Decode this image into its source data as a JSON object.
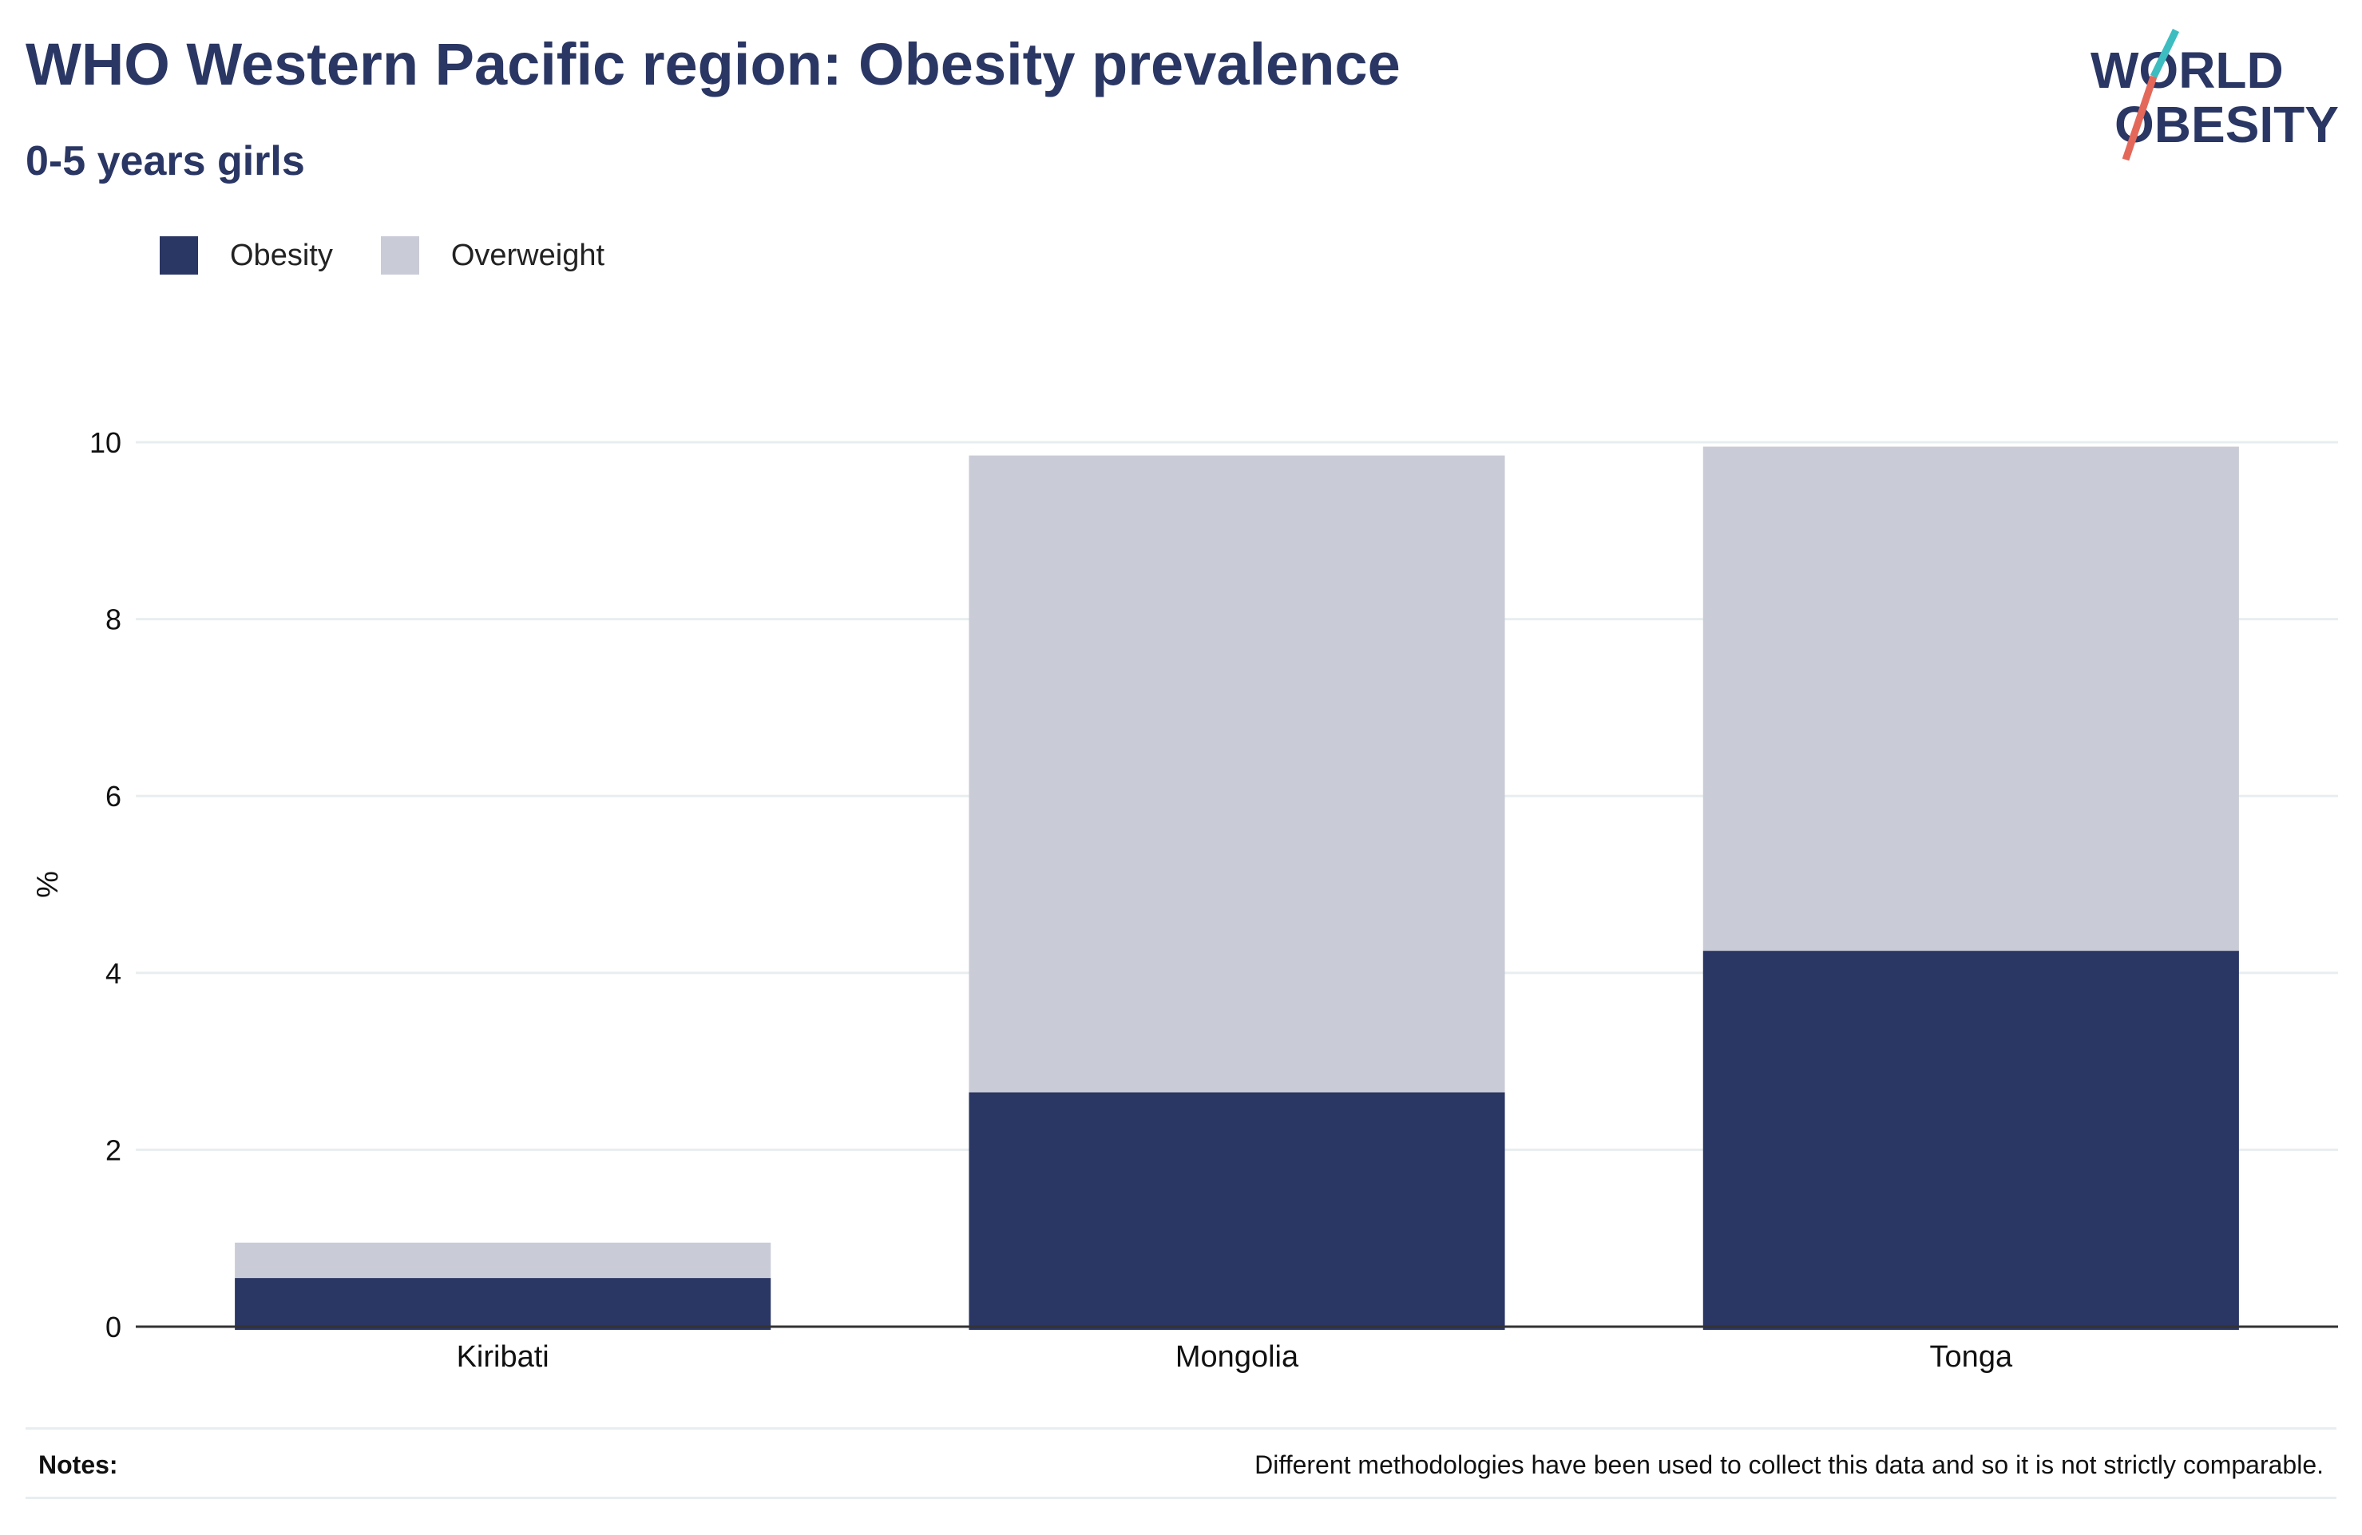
{
  "header": {
    "title": "WHO Western Pacific region: Obesity prevalence",
    "subtitle": "0-5 years girls"
  },
  "logo": {
    "line1": "WORLD",
    "line2": "OBESITY"
  },
  "legend": [
    {
      "label": "Obesity",
      "color": "#2a3663"
    },
    {
      "label": "Overweight",
      "color": "#c9cbd6"
    }
  ],
  "notes": {
    "label": "Notes:",
    "text": "Different methodologies have been used to collect this data and so it is not strictly comparable."
  },
  "chart_data": {
    "type": "bar",
    "stacked": true,
    "categories": [
      "Kiribati",
      "Mongolia",
      "Tonga"
    ],
    "series": [
      {
        "name": "Obesity",
        "color": "#2a3663",
        "values": [
          0.55,
          2.65,
          4.25
        ]
      },
      {
        "name": "Overweight",
        "color": "#c9cbd6",
        "values": [
          0.4,
          7.2,
          5.7
        ]
      }
    ],
    "ylabel": "%",
    "ylim": [
      0,
      10
    ],
    "yticks": [
      0,
      2,
      4,
      6,
      8,
      10
    ],
    "grid": true,
    "legend_position": "top-left"
  }
}
